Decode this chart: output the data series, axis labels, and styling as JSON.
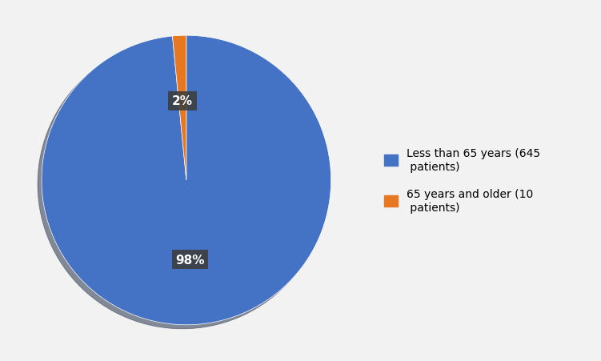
{
  "values": [
    645,
    10
  ],
  "percentages": [
    "98%",
    "2%"
  ],
  "colors": [
    "#4472C4",
    "#E87722"
  ],
  "legend_labels": [
    "Less than 65 years (645\n patients)",
    "65 years and older (10\n patients)"
  ],
  "background_color": "#f2f2f2",
  "label_font_color": "#ffffff",
  "label_bg_color": "#3d3d3d",
  "label_fontsize": 11,
  "startangle": 90,
  "legend_fontsize": 10
}
